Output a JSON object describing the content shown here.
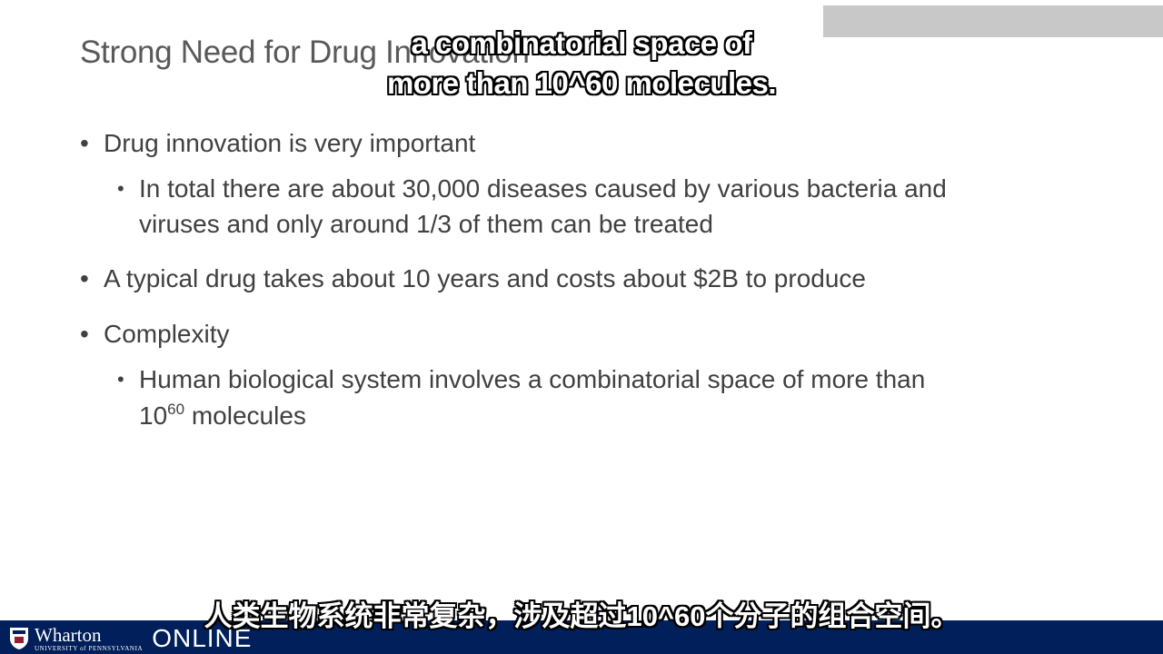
{
  "slide": {
    "title": "Strong Need for Drug Innovation",
    "bullets": [
      {
        "level": 1,
        "text": "Drug innovation is very important"
      },
      {
        "level": 2,
        "lines": [
          "In total there are about 30,000 diseases caused by various bacteria and",
          "viruses and only around 1/3 of them can be treated"
        ]
      },
      {
        "level": 1,
        "text": "A typical drug takes about 10 years and costs about $2B to produce"
      },
      {
        "level": 1,
        "text": "Complexity"
      },
      {
        "level": 2,
        "line1": "Human biological system involves a combinatorial space of more than",
        "line2_base": "10",
        "line2_exp": "60",
        "line2_rest": " molecules"
      }
    ],
    "bullet_glyph": "•"
  },
  "captions": {
    "english_lines": [
      "a combinatorial space of",
      "more than 10^60 molecules."
    ],
    "chinese": "人类生物系统非常复杂，涉及超过10^60个分子的组合空间。"
  },
  "footer": {
    "brand": "Wharton",
    "brand_sub": "UNIVERSITY of PENNSYLVANIA",
    "product": "ONLINE",
    "bar_color": "#001f5b",
    "accent_box_color": "#c8c8c8"
  }
}
